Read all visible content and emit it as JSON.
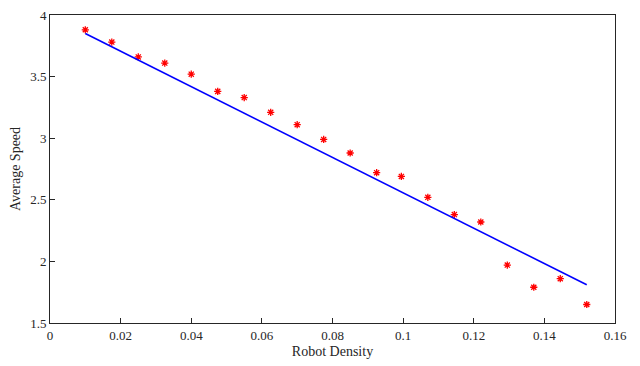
{
  "chart_data": {
    "type": "scatter",
    "x_label": "Robot Density",
    "y_label": "Average Speed",
    "xlim": [
      0,
      0.16
    ],
    "xticks": [
      0,
      0.02,
      0.04,
      0.06,
      0.08,
      0.1,
      0.12,
      0.14,
      0.16
    ],
    "ylim": [
      1.5,
      4
    ],
    "yticks": [
      1.5,
      2,
      2.5,
      3,
      3.5,
      4
    ],
    "grid": false,
    "series": [
      {
        "type": "scatter",
        "color": "#ff0000",
        "marker": "asterisk",
        "x": [
          0.01,
          0.0175,
          0.025,
          0.0325,
          0.04,
          0.0475,
          0.055,
          0.0625,
          0.07,
          0.0775,
          0.085,
          0.0925,
          0.0995,
          0.107,
          0.1145,
          0.122,
          0.1295,
          0.137,
          0.1445,
          0.152
        ],
        "values": [
          3.88,
          3.78,
          3.66,
          3.61,
          3.52,
          3.38,
          3.33,
          3.21,
          3.11,
          2.99,
          2.88,
          2.72,
          2.69,
          2.52,
          2.38,
          2.32,
          1.97,
          1.79,
          1.86,
          1.65
        ]
      },
      {
        "type": "line",
        "color": "#0000ff",
        "line_style": "solid",
        "x": [
          0.01,
          0.152
        ],
        "values": [
          3.85,
          1.81
        ]
      }
    ]
  }
}
